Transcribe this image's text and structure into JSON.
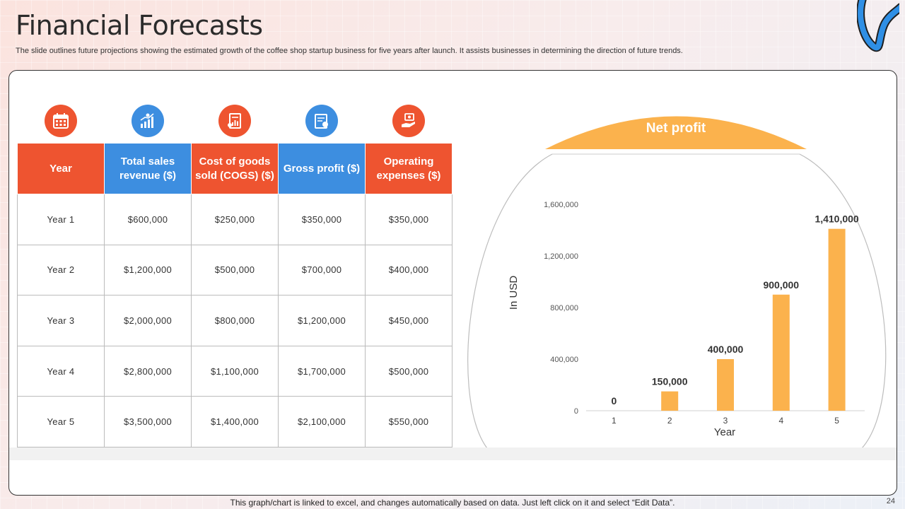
{
  "page": {
    "title": "Financial Forecasts",
    "subtitle": "The slide outlines future projections showing the estimated growth of the coffee shop startup business for five years after launch. It assists businesses in determining the direction of future trends.",
    "footer_note": "This graph/chart is linked to excel, and changes automatically based on data. Just left click on it and select “Edit Data”.",
    "page_number": "24"
  },
  "colors": {
    "red": "#ee5430",
    "blue": "#3d8ee0",
    "bar": "#fbb24d"
  },
  "icons": [
    "calendar-icon",
    "growth-chart-icon",
    "receipt-icon",
    "profit-document-icon",
    "expense-hand-icon"
  ],
  "table": {
    "headers": [
      "Year",
      "Total sales revenue ($)",
      "Cost of goods sold (COGS) ($)",
      "Gross profit ($)",
      "Operating expenses ($)"
    ],
    "rows": [
      [
        "Year 1",
        "$600,000",
        "$250,000",
        "$350,000",
        "$350,000"
      ],
      [
        "Year 2",
        "$1,200,000",
        "$500,000",
        "$700,000",
        "$400,000"
      ],
      [
        "Year 3",
        "$2,000,000",
        "$800,000",
        "$1,200,000",
        "$450,000"
      ],
      [
        "Year 4",
        "$2,800,000",
        "$1,100,000",
        "$1,700,000",
        "$500,000"
      ],
      [
        "Year 5",
        "$3,500,000",
        "$1,400,000",
        "$2,100,000",
        "$550,000"
      ]
    ]
  },
  "chart_data": {
    "type": "bar",
    "title": "Net profit",
    "xlabel": "Year",
    "ylabel": "In USD",
    "categories": [
      "1",
      "2",
      "3",
      "4",
      "5"
    ],
    "values": [
      0,
      150000,
      400000,
      900000,
      1410000
    ],
    "data_labels": [
      "0",
      "150,000",
      "400,000",
      "900,000",
      "1,410,000"
    ],
    "ylim": [
      0,
      1600000
    ],
    "yticks": [
      0,
      400000,
      800000,
      1200000,
      1600000
    ],
    "ytick_labels": [
      "0",
      "400,000",
      "800,000",
      "1,200,000",
      "1,600,000"
    ],
    "grid": false
  }
}
